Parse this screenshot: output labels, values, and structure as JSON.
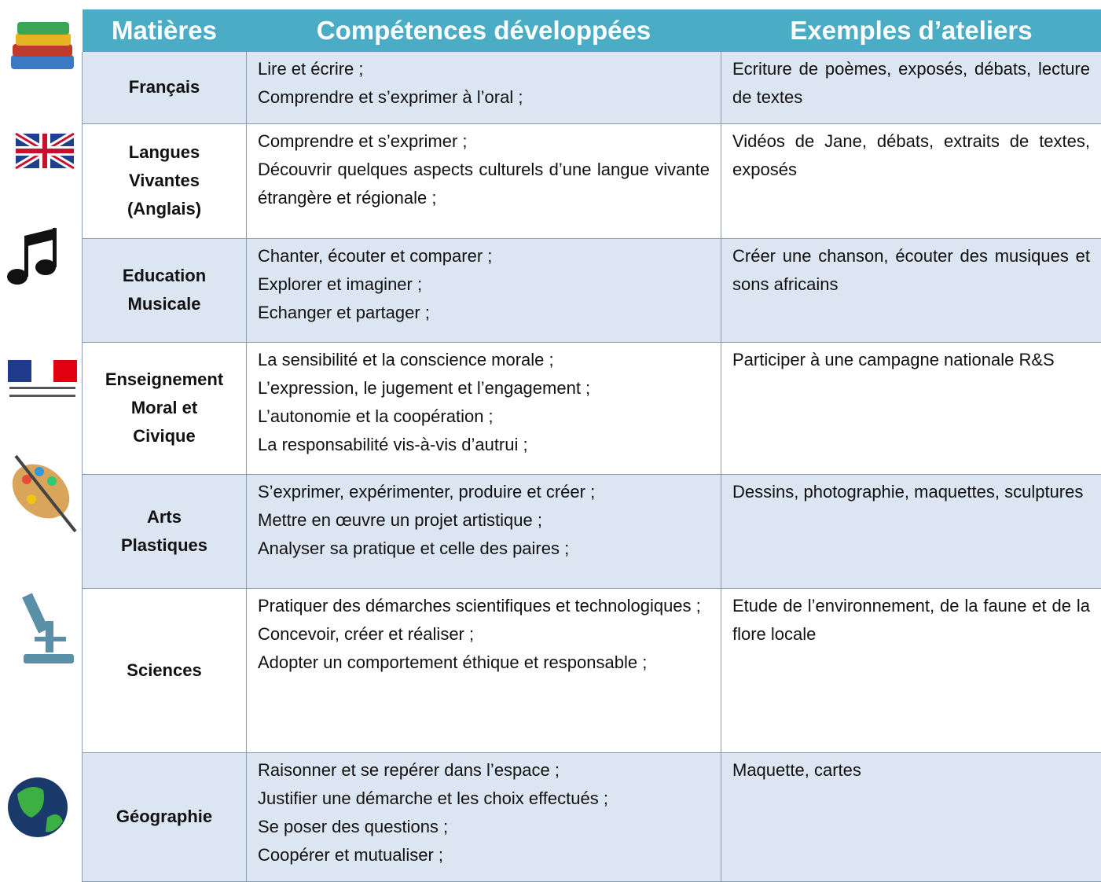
{
  "header": {
    "columns": [
      "Matières",
      "Compétences développées",
      "Exemples d’ateliers"
    ]
  },
  "rows": [
    {
      "subject": [
        "Français"
      ],
      "skills": [
        "Lire et écrire ;",
        "Comprendre et s’exprimer à l’oral ;"
      ],
      "examples": "Ecriture de poèmes, exposés, débats, lecture de textes"
    },
    {
      "subject": [
        "Langues",
        "Vivantes",
        "(Anglais)"
      ],
      "skills": [
        "Comprendre et s’exprimer ;",
        "Découvrir quelques aspects culturels d’une langue vivante étrangère et régionale ;"
      ],
      "examples": "Vidéos de Jane, débats, extraits de textes, exposés"
    },
    {
      "subject": [
        "Education",
        "Musicale"
      ],
      "skills": [
        "Chanter, écouter et comparer ;",
        "Explorer et imaginer ;",
        "Echanger et partager ;"
      ],
      "examples": "Créer une chanson, écouter des musiques et sons africains"
    },
    {
      "subject": [
        "Enseignement",
        "Moral et",
        "Civique"
      ],
      "skills": [
        "La sensibilité et la conscience morale ;",
        "L’expression, le jugement et l’engagement ;",
        "L’autonomie et la coopération ;",
        "La responsabilité vis-à-vis d’autrui ;"
      ],
      "examples": "Participer à une campagne nationale R&S"
    },
    {
      "subject": [
        "Arts",
        "Plastiques"
      ],
      "skills": [
        "S’exprimer, expérimenter, produire et créer ;",
        "Mettre en œuvre un projet artistique ;",
        "Analyser sa pratique et celle des paires ;"
      ],
      "examples": "Dessins, photographie, maquettes, sculptures"
    },
    {
      "subject": [
        "Sciences"
      ],
      "skills": [
        "Pratiquer des démarches scientifiques et technologiques ;",
        "Concevoir, créer et réaliser ;",
        "Adopter un comportement éthique et responsable ;"
      ],
      "examples": "Etude de l’environnement, de la faune et de la flore locale"
    },
    {
      "subject": [
        "Géographie"
      ],
      "skills": [
        "Raisonner et se repérer dans l’espace ;",
        "Justifier une démarche et les choix effectués ;",
        "Se poser des questions ;",
        "Coopérer et mutualiser ;"
      ],
      "examples": "Maquette, cartes"
    }
  ]
}
